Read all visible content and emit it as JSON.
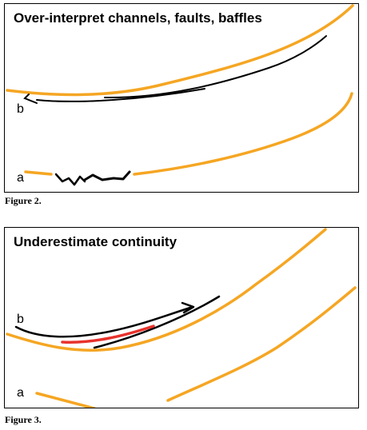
{
  "colors": {
    "horizon": "#f5a623",
    "interpretation": "#000000",
    "highlight": "#e8322d"
  },
  "figure2": {
    "title": "Over-interpret channels, faults, baffles",
    "label_b": "b",
    "label_a": "a",
    "caption": "Figure 2."
  },
  "figure3": {
    "title": "Underestimate continuity",
    "label_b": "b",
    "label_a": "a",
    "caption": "Figure 3."
  }
}
